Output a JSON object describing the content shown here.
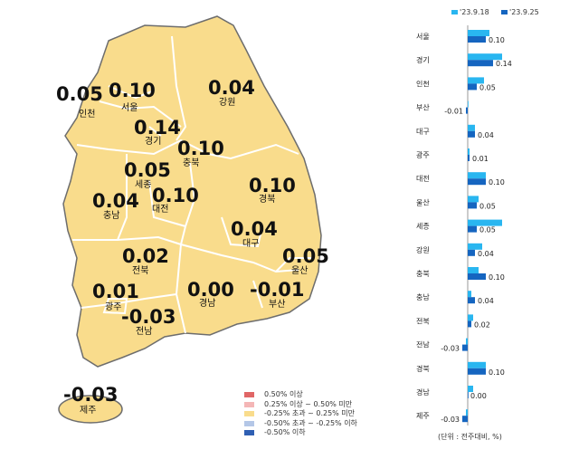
{
  "map": {
    "regions": [
      {
        "name": "인천",
        "value": "0.05"
      },
      {
        "name": "서울",
        "value": "0.10"
      },
      {
        "name": "경기",
        "value": "0.14"
      },
      {
        "name": "강원",
        "value": "0.04"
      },
      {
        "name": "충북",
        "value": "0.10"
      },
      {
        "name": "세종",
        "value": "0.05"
      },
      {
        "name": "대전",
        "value": "0.10"
      },
      {
        "name": "충남",
        "value": "0.04"
      },
      {
        "name": "경북",
        "value": "0.10"
      },
      {
        "name": "대구",
        "value": "0.04"
      },
      {
        "name": "울산",
        "value": "0.05"
      },
      {
        "name": "전북",
        "value": "0.02"
      },
      {
        "name": "광주",
        "value": "0.01"
      },
      {
        "name": "전남",
        "value": "-0.03"
      },
      {
        "name": "경남",
        "value": "0.00"
      },
      {
        "name": "부산",
        "value": "-0.01"
      },
      {
        "name": "제주",
        "value": "-0.03"
      }
    ],
    "fill_color": "#f9dc8c",
    "border_color": "#6d6d6d"
  },
  "legend": [
    {
      "label": "0.50% 이상",
      "color": "#e06666"
    },
    {
      "label": "0.25% 이상 ~ 0.50% 미만",
      "color": "#f4b6b6"
    },
    {
      "label": "-0.25% 초과 ~ 0.25% 미만",
      "color": "#f9dc8c"
    },
    {
      "label": "-0.50% 초과 ~ -0.25% 이하",
      "color": "#b4c7e7"
    },
    {
      "label": "-0.50% 이하",
      "color": "#2f5fb3"
    }
  ],
  "chart_data": {
    "type": "bar",
    "orientation": "horizontal",
    "categories": [
      "서울",
      "경기",
      "인천",
      "부산",
      "대구",
      "광주",
      "대전",
      "울산",
      "세종",
      "강원",
      "충북",
      "충남",
      "전북",
      "전남",
      "경북",
      "경남",
      "제주"
    ],
    "series": [
      {
        "name": "'23.9.18",
        "color": "#29b6f0",
        "values": [
          0.12,
          0.19,
          0.09,
          0.0,
          0.04,
          0.01,
          0.1,
          0.06,
          0.19,
          0.08,
          0.06,
          0.02,
          0.03,
          -0.01,
          0.1,
          0.03,
          -0.01
        ]
      },
      {
        "name": "'23.9.25",
        "color": "#1565c0",
        "values": [
          0.1,
          0.14,
          0.05,
          -0.01,
          0.04,
          0.01,
          0.1,
          0.05,
          0.05,
          0.04,
          0.1,
          0.04,
          0.02,
          -0.03,
          0.1,
          0.0,
          -0.03
        ]
      }
    ],
    "data_labels": [
      "0.10",
      "0.14",
      "0.05",
      "-0.01",
      "0.04",
      "0.01",
      "0.10",
      "0.05",
      "0.05",
      "0.04",
      "0.10",
      "0.04",
      "0.02",
      "-0.03",
      "0.10",
      "0.00",
      "-0.03"
    ],
    "unit_note": "(단위 : 전주대비, %)"
  }
}
